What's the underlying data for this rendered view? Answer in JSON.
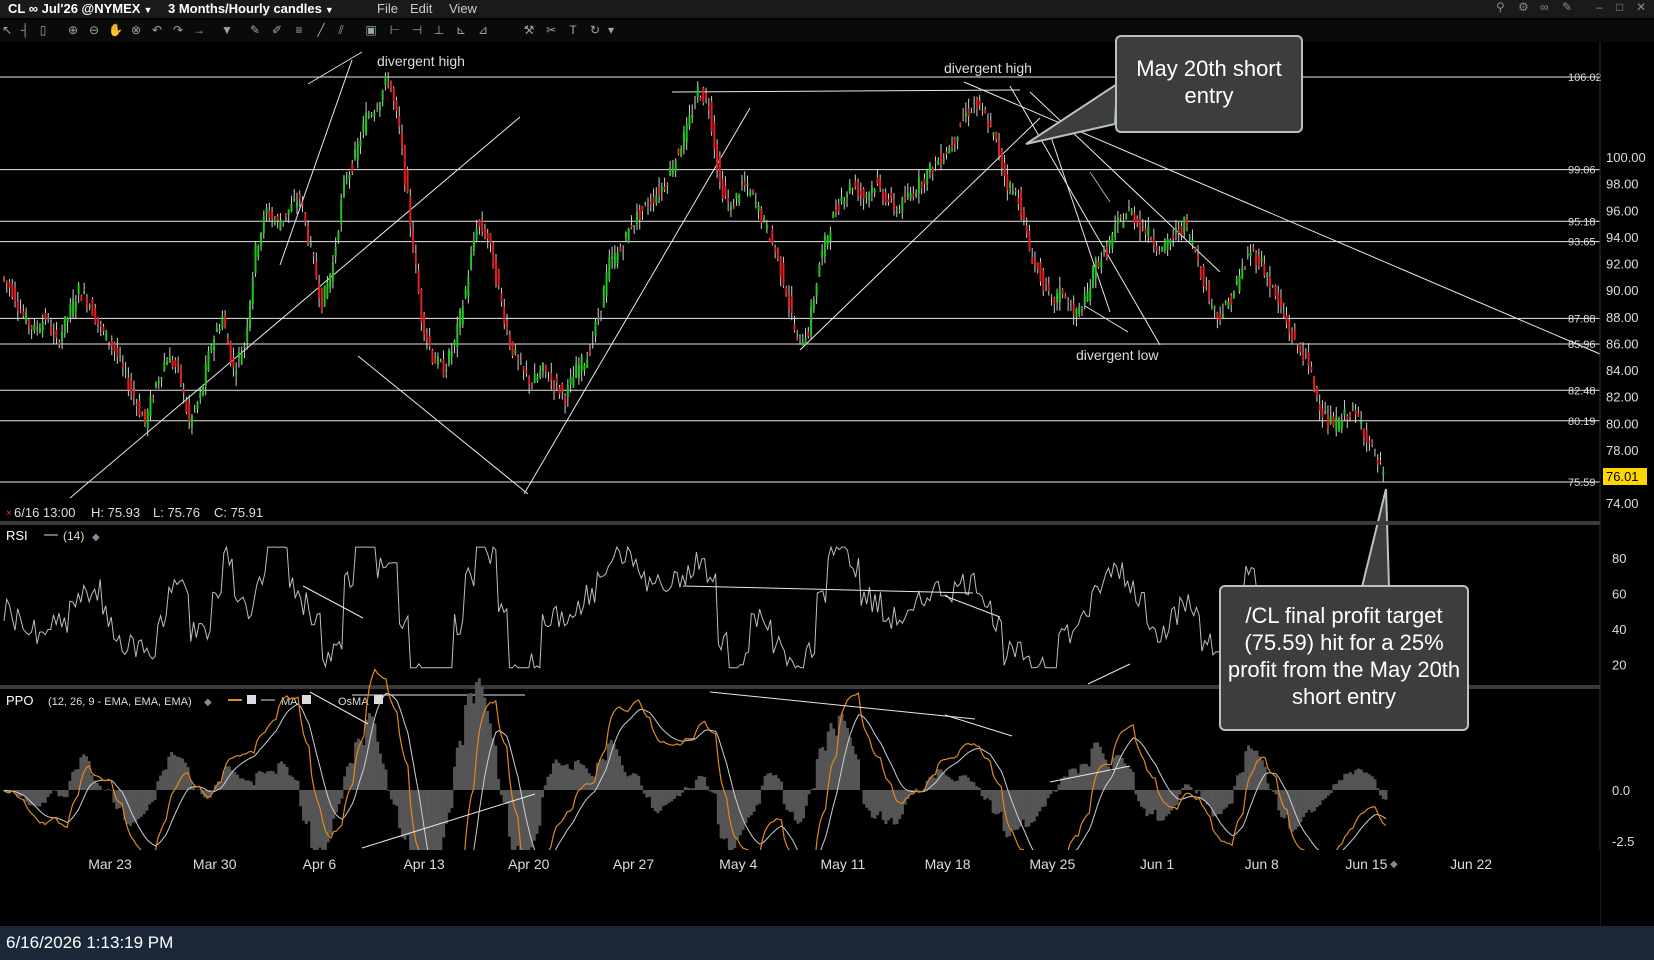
{
  "titlebar": {
    "symbol": "CL ∞ Jul'26 @NYMEX",
    "period": "3 Months/Hourly candles",
    "menu": [
      "File",
      "Edit",
      "View"
    ]
  },
  "price_panel": {
    "ohlc_readout": {
      "date": "6/16 13:00",
      "high": "H: 75.93",
      "low": "L: 75.76",
      "close": "C: 75.91"
    },
    "axis_ticks": [
      "100.00",
      "98.00",
      "96.00",
      "94.00",
      "92.00",
      "90.00",
      "88.00",
      "86.00",
      "84.00",
      "82.00",
      "80.00",
      "78.00",
      "74.00"
    ],
    "level_labels": [
      "106.02",
      "99.06",
      "95.18",
      "93.65",
      "87.88",
      "85.96",
      "82.48",
      "80.19",
      "75.59"
    ],
    "current_price": "76.01",
    "annotations": [
      "divergent high",
      "divergent high",
      "divergent low"
    ]
  },
  "rsi_panel": {
    "title": "RSI",
    "params": "(14)",
    "ticks": [
      "80",
      "60",
      "40",
      "20"
    ]
  },
  "ppo_panel": {
    "title": "PPO",
    "params": "(12, 26, 9 - EMA, EMA, EMA)",
    "ma_label": "MA",
    "osma_label": "OsMA",
    "ticks": [
      "0.0",
      "-2.5"
    ]
  },
  "x_axis": [
    "Mar 23",
    "Mar 30",
    "Apr 6",
    "Apr 13",
    "Apr 20",
    "Apr 27",
    "May 4",
    "May 11",
    "May 18",
    "May 25",
    "Jun 1",
    "Jun 8",
    "Jun 15",
    "Jun 22"
  ],
  "callouts": {
    "entry": "May 20th short entry",
    "target": "/CL final profit target (75.59) hit for a 25% profit from the May 20th short entry"
  },
  "statusbar": {
    "datetime": "6/16/2026 1:13:19 PM"
  },
  "colors": {
    "up": "#23c41d",
    "down": "#e02020",
    "ppo": "#e08a1e",
    "label_bg": "#ffd700",
    "callout_bg": "#3d3d3d"
  },
  "icons": [
    "arrow-icon",
    "bar-icon",
    "candle-icon",
    "zoom-in-icon",
    "zoom-out-icon",
    "hand-icon",
    "crosshair-icon",
    "undo-icon",
    "redo-icon",
    "forward-icon",
    "dropdown-icon",
    "draw-icon",
    "brush-icon",
    "indicator-icon",
    "line-icon",
    "fib-icon",
    "gann-icon",
    "channel-icon",
    "pitchfork-icon",
    "measure-icon",
    "text-icon",
    "refresh-icon"
  ],
  "chart_data": {
    "type": "line",
    "price_series": [
      91,
      90,
      88,
      87,
      88,
      86,
      88,
      90,
      89,
      87,
      86,
      84,
      82,
      80,
      83,
      85,
      84,
      80,
      82,
      86,
      88,
      84,
      86,
      93,
      96,
      95,
      96,
      97,
      93,
      89,
      92,
      98,
      100,
      103,
      104,
      106,
      102,
      95,
      88,
      85,
      84,
      86,
      90,
      95,
      94,
      90,
      86,
      84,
      83,
      84,
      83,
      82,
      84,
      85,
      88,
      92,
      93,
      95,
      96,
      97,
      98,
      100,
      102,
      105,
      104,
      98,
      96,
      98,
      97,
      95,
      93,
      90,
      86,
      87,
      92,
      95,
      97,
      98,
      97,
      98,
      97,
      96,
      97,
      98,
      99,
      100,
      101,
      103,
      104,
      103,
      101,
      98,
      97,
      93,
      91,
      89,
      90,
      88,
      89,
      92,
      93,
      95,
      96,
      95,
      94,
      93,
      94,
      95,
      93,
      90,
      88,
      89,
      91,
      93,
      92,
      90,
      88,
      86,
      85,
      82,
      80,
      80,
      81,
      80,
      78,
      76
    ]
  }
}
